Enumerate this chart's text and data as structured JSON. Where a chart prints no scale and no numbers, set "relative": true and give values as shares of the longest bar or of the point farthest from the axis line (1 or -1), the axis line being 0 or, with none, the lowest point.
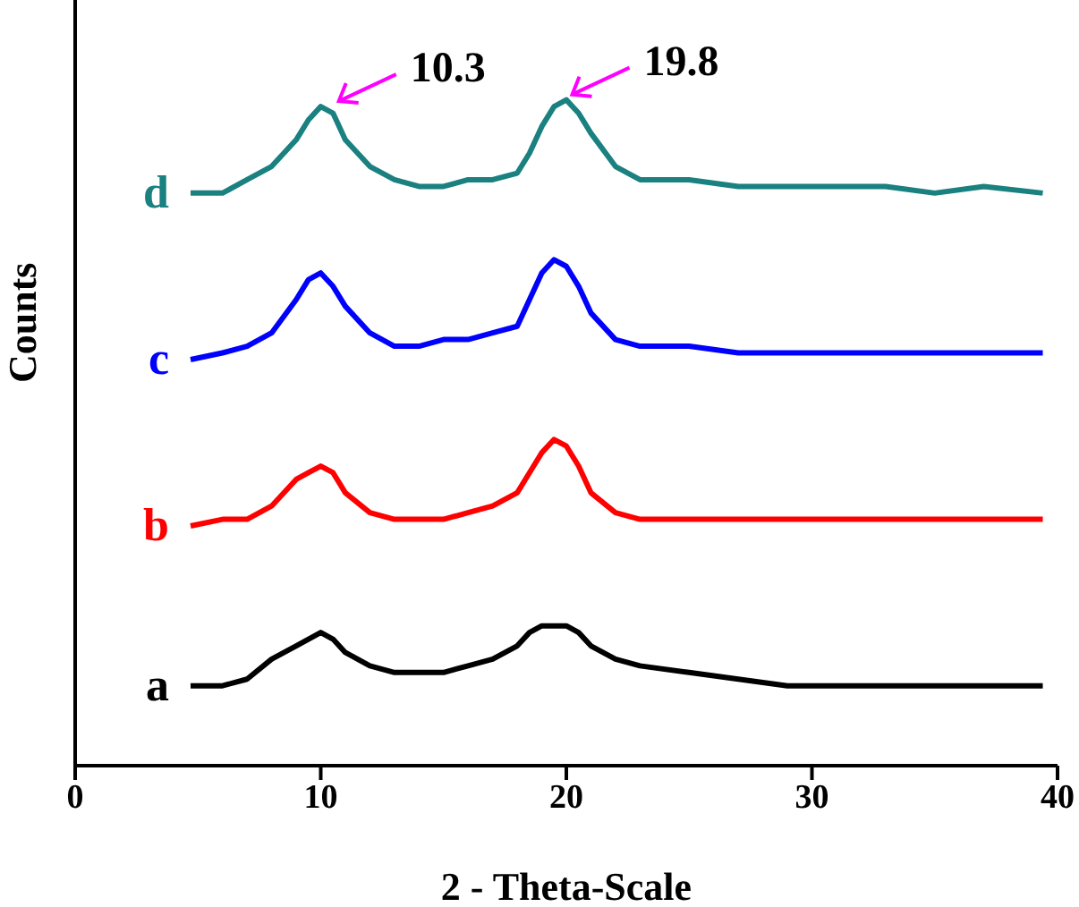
{
  "chart_data": {
    "type": "line",
    "relative": true,
    "xlabel": "2 - Theta-Scale",
    "ylabel": "Counts",
    "xlim": [
      0,
      40
    ],
    "xticks": [
      0,
      10,
      20,
      30,
      40
    ],
    "grid": false,
    "legend": false,
    "marker": "none",
    "line_style": "solid",
    "x": [
      4.7,
      6,
      7,
      8,
      9,
      9.5,
      10,
      10.5,
      11,
      12,
      13,
      14,
      15,
      16,
      17,
      18,
      18.5,
      19,
      19.5,
      20,
      20.5,
      21,
      22,
      23,
      25,
      27,
      29,
      31,
      33,
      35,
      37,
      39.4
    ],
    "series": [
      {
        "name": "a",
        "color": "#000000",
        "values": [
          0.12,
          0.12,
          0.13,
          0.16,
          0.18,
          0.19,
          0.2,
          0.19,
          0.17,
          0.15,
          0.14,
          0.14,
          0.14,
          0.15,
          0.16,
          0.18,
          0.2,
          0.21,
          0.21,
          0.21,
          0.2,
          0.18,
          0.16,
          0.15,
          0.14,
          0.13,
          0.12,
          0.12,
          0.12,
          0.12,
          0.12,
          0.12
        ]
      },
      {
        "name": "b",
        "color": "#ff0000",
        "values": [
          0.36,
          0.37,
          0.37,
          0.39,
          0.43,
          0.44,
          0.45,
          0.44,
          0.41,
          0.38,
          0.37,
          0.37,
          0.37,
          0.38,
          0.39,
          0.41,
          0.44,
          0.47,
          0.49,
          0.48,
          0.45,
          0.41,
          0.38,
          0.37,
          0.37,
          0.37,
          0.37,
          0.37,
          0.37,
          0.37,
          0.37,
          0.37
        ]
      },
      {
        "name": "c",
        "color": "#0000ff",
        "values": [
          0.61,
          0.62,
          0.63,
          0.65,
          0.7,
          0.73,
          0.74,
          0.72,
          0.69,
          0.65,
          0.63,
          0.63,
          0.64,
          0.64,
          0.65,
          0.66,
          0.7,
          0.74,
          0.76,
          0.75,
          0.72,
          0.68,
          0.64,
          0.63,
          0.63,
          0.62,
          0.62,
          0.62,
          0.62,
          0.62,
          0.62,
          0.62
        ]
      },
      {
        "name": "d",
        "color": "#1a8080",
        "values": [
          0.86,
          0.86,
          0.88,
          0.9,
          0.94,
          0.97,
          0.99,
          0.98,
          0.94,
          0.9,
          0.88,
          0.87,
          0.87,
          0.88,
          0.88,
          0.89,
          0.92,
          0.96,
          0.99,
          1.0,
          0.98,
          0.95,
          0.9,
          0.88,
          0.88,
          0.87,
          0.87,
          0.87,
          0.87,
          0.86,
          0.87,
          0.86
        ]
      }
    ],
    "annotations": [
      {
        "text": "10.3",
        "x": 10.3,
        "y": 0.99
      },
      {
        "text": "19.8",
        "x": 19.8,
        "y": 1.0
      }
    ]
  }
}
